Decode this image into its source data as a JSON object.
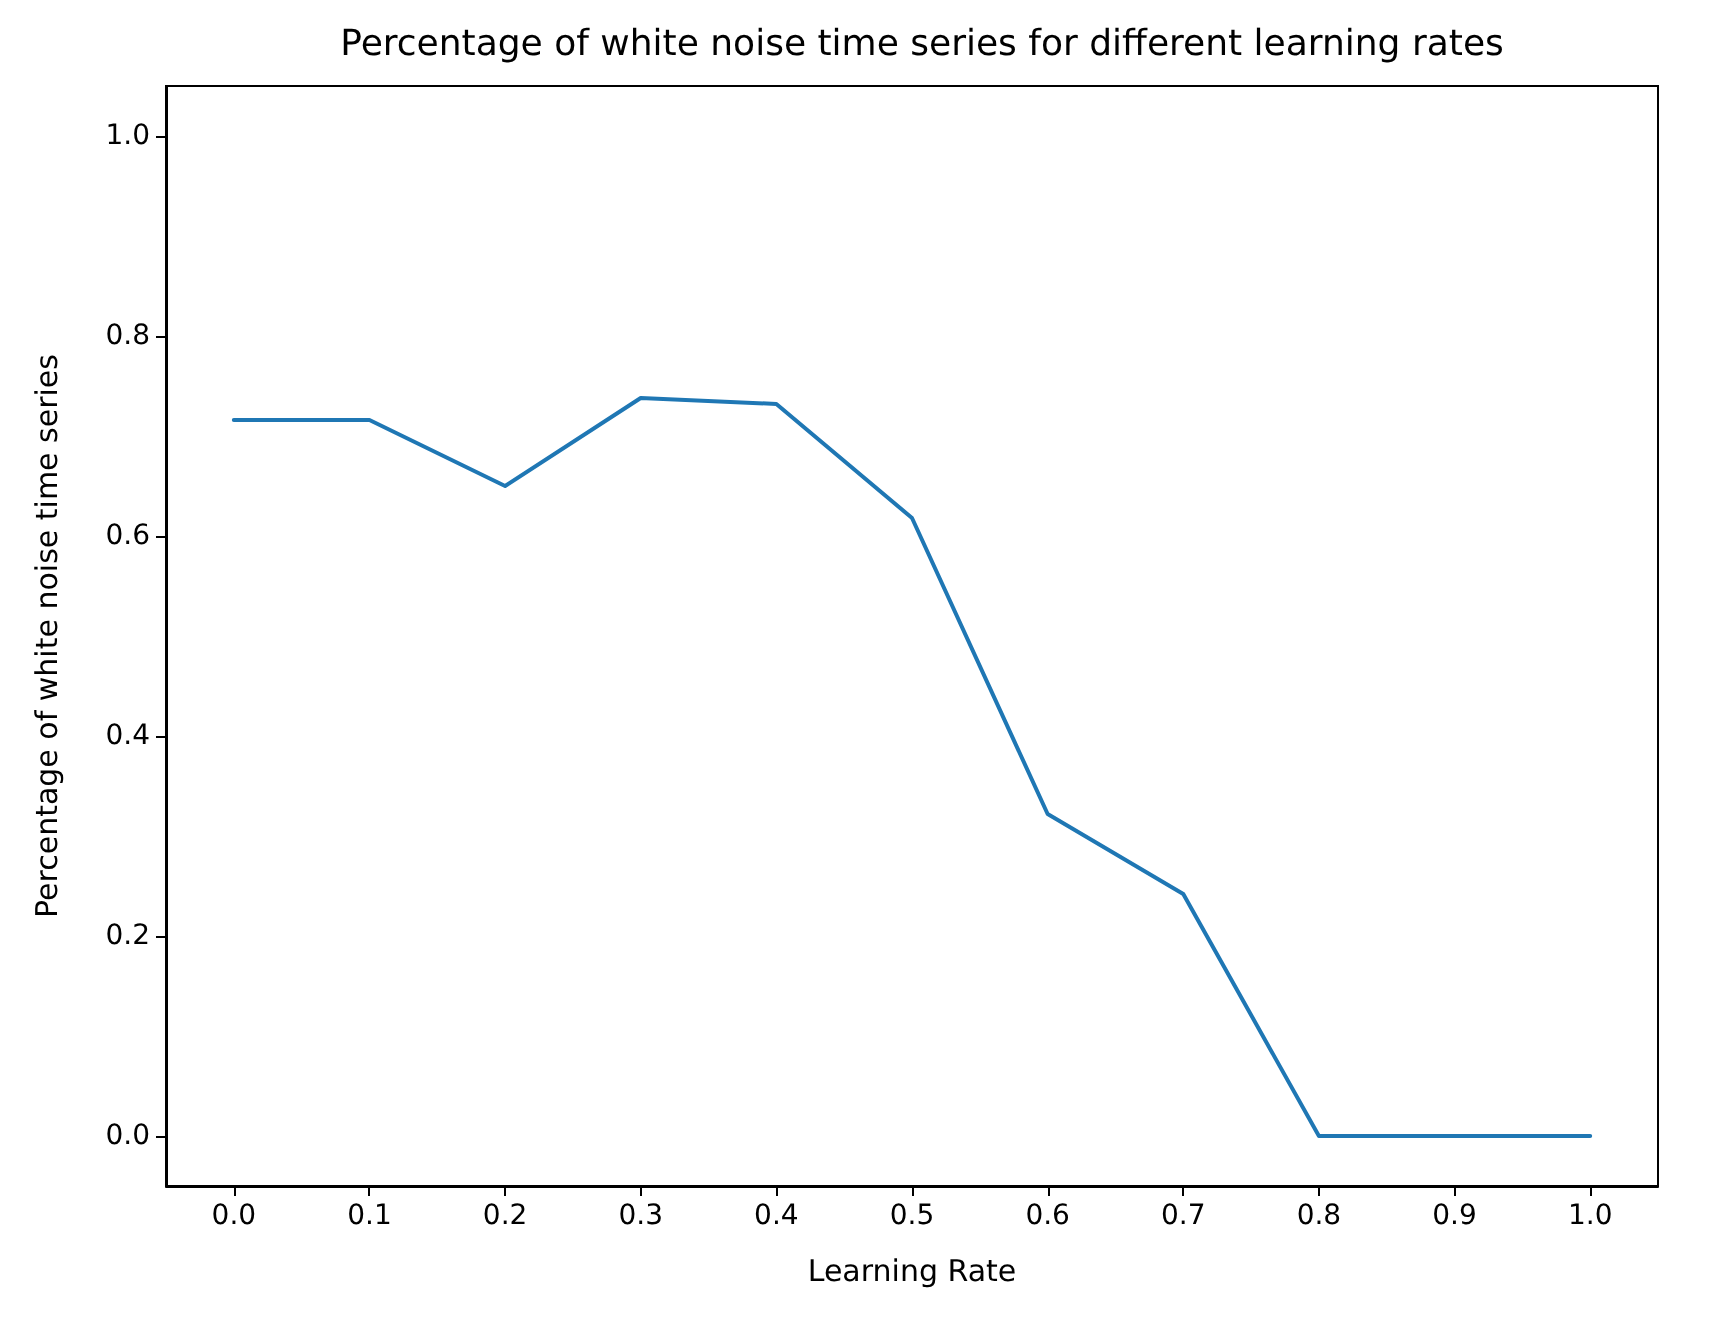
{
  "chart_data": {
    "type": "line",
    "title": "Percentage of white noise time series for different learning rates",
    "xlabel": "Learning Rate",
    "ylabel": "Percentage of white noise time series",
    "x": [
      0.0,
      0.1,
      0.2,
      0.3,
      0.4,
      0.5,
      0.6,
      0.7,
      0.8,
      0.9,
      1.0
    ],
    "series": [
      {
        "color": "#1f77b4",
        "values": [
          0.716,
          0.716,
          0.65,
          0.738,
          0.732,
          0.618,
          0.322,
          0.242,
          0.0,
          0.0,
          0.0
        ]
      }
    ],
    "xlim": [
      -0.05,
      1.05
    ],
    "xticks": [
      {
        "value": 0,
        "label": "0.0"
      },
      {
        "value": 0.1,
        "label": "0.1"
      },
      {
        "value": 0.2,
        "label": "0.2"
      },
      {
        "value": 0.3,
        "label": "0.3"
      },
      {
        "value": 0.4,
        "label": "0.4"
      },
      {
        "value": 0.5,
        "label": "0.5"
      },
      {
        "value": 0.6,
        "label": "0.6"
      },
      {
        "value": 0.7,
        "label": "0.7"
      },
      {
        "value": 0.8,
        "label": "0.8"
      },
      {
        "value": 0.9,
        "label": "0.9"
      },
      {
        "value": 1,
        "label": "1.0"
      }
    ],
    "ylim": [
      -0.05,
      1.05
    ],
    "yticks": [
      {
        "value": 0,
        "label": "0.0"
      },
      {
        "value": 0.2,
        "label": "0.2"
      },
      {
        "value": 0.4,
        "label": "0.4"
      },
      {
        "value": 0.6,
        "label": "0.6"
      },
      {
        "value": 0.8,
        "label": "0.8"
      },
      {
        "value": 1,
        "label": "1.0"
      }
    ],
    "grid": false,
    "marker": "none",
    "line_style": "solid"
  }
}
